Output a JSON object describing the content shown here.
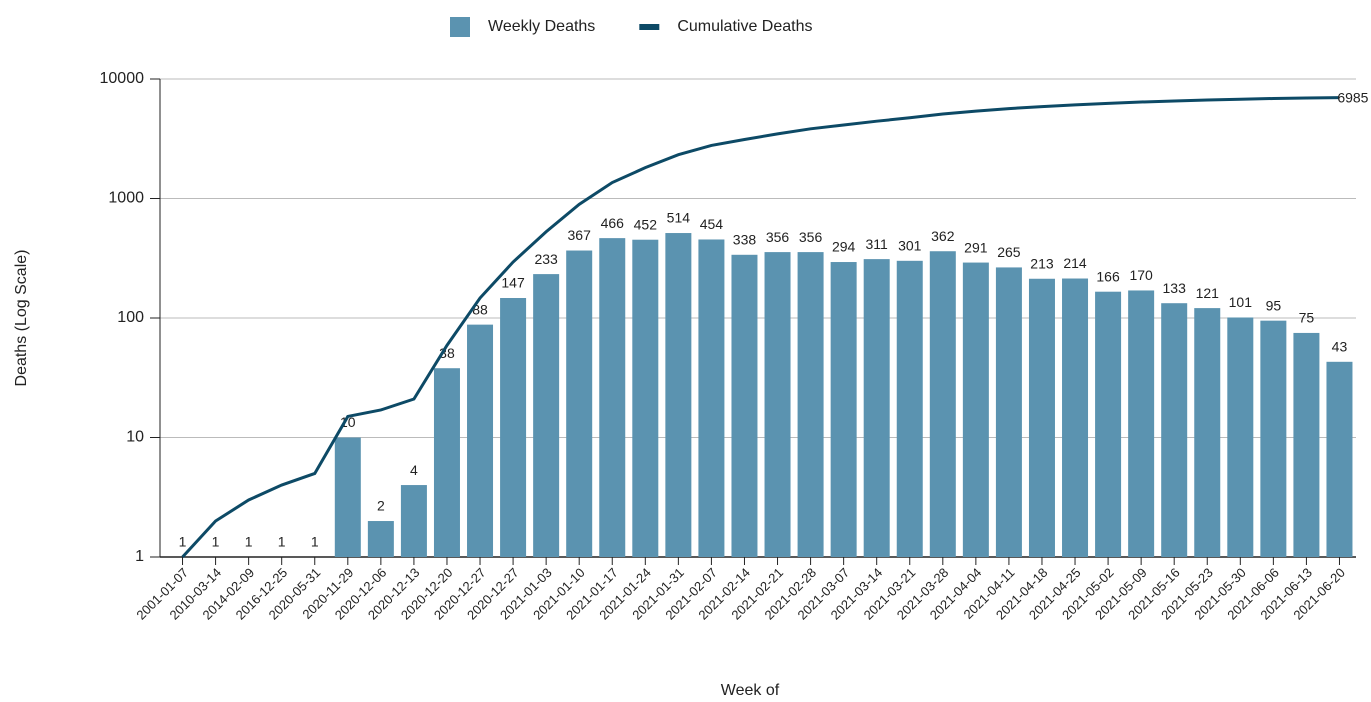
{
  "chart_data": {
    "type": "bar",
    "x_label": "Week of",
    "y_label": "Deaths (Log Scale)",
    "categories": [
      "2001-01-07",
      "2010-03-14",
      "2014-02-09",
      "2016-12-25",
      "2020-05-31",
      "2020-11-29",
      "2020-12-06",
      "2020-12-13",
      "2020-12-20",
      "2020-12-27",
      "2020-12-27",
      "2021-01-03",
      "2021-01-10",
      "2021-01-17",
      "2021-01-24",
      "2021-01-31",
      "2021-02-07",
      "2021-02-14",
      "2021-02-21",
      "2021-02-28",
      "2021-03-07",
      "2021-03-14",
      "2021-03-21",
      "2021-03-28",
      "2021-04-04",
      "2021-04-11",
      "2021-04-18",
      "2021-04-25",
      "2021-05-02",
      "2021-05-09",
      "2021-05-16",
      "2021-05-23",
      "2021-05-30",
      "2021-06-06",
      "2021-06-13",
      "2021-06-20"
    ],
    "series": [
      {
        "name": "Weekly Deaths",
        "type": "bar",
        "color": "#5b93b0",
        "label_color": "#6ba3c1",
        "values": [
          1,
          1,
          1,
          1,
          1,
          10,
          2,
          4,
          38,
          88,
          147,
          233,
          367,
          466,
          452,
          514,
          454,
          338,
          356,
          356,
          294,
          311,
          301,
          362,
          291,
          265,
          213,
          214,
          166,
          170,
          133,
          121,
          101,
          95,
          75,
          43
        ]
      },
      {
        "name": "Cumulative Deaths",
        "type": "line",
        "color": "#0d4a66",
        "values": [
          1,
          2,
          3,
          4,
          5,
          15,
          17,
          21,
          59,
          147,
          294,
          527,
          894,
          1360,
          1812,
          2326,
          2780,
          3118,
          3474,
          3830,
          4124,
          4435,
          4736,
          5098,
          5389,
          5654,
          5867,
          6081,
          6247,
          6417,
          6550,
          6671,
          6772,
          6867,
          6942,
          6985
        ]
      }
    ],
    "yscale": "log",
    "ylim": [
      1,
      10000
    ],
    "yticks": [
      1,
      10,
      100,
      1000,
      10000
    ],
    "grid": true,
    "legend": "top"
  }
}
